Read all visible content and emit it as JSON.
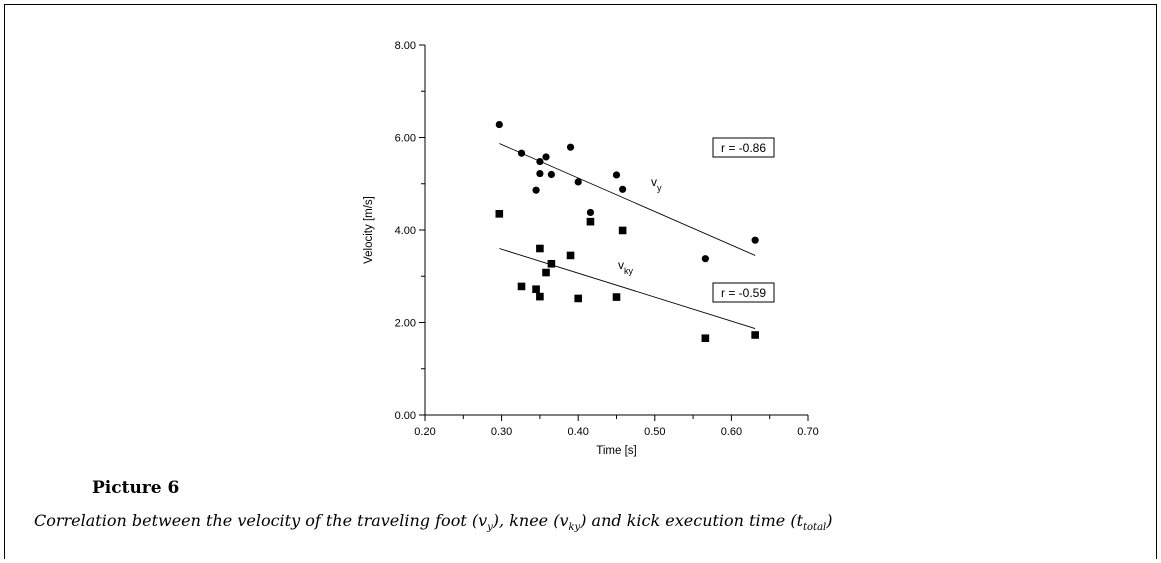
{
  "chart_data": {
    "type": "scatter",
    "xlabel": "Time [s]",
    "ylabel": "Velocity [m/s]",
    "xlim": [
      0.2,
      0.7
    ],
    "ylim": [
      0,
      8
    ],
    "xticks": [
      "0.20",
      "0.30",
      "0.40",
      "0.50",
      "0.60",
      "0.70"
    ],
    "yticks": [
      "0.00",
      "2.00",
      "4.00",
      "6.00",
      "8.00"
    ],
    "grid": false,
    "series": [
      {
        "name": "vy",
        "marker": "circle",
        "points": [
          [
            0.297,
            6.28
          ],
          [
            0.326,
            5.66
          ],
          [
            0.35,
            5.48
          ],
          [
            0.358,
            5.58
          ],
          [
            0.35,
            5.22
          ],
          [
            0.365,
            5.2
          ],
          [
            0.345,
            4.86
          ],
          [
            0.39,
            5.79
          ],
          [
            0.4,
            5.04
          ],
          [
            0.45,
            5.19
          ],
          [
            0.458,
            4.88
          ],
          [
            0.416,
            4.38
          ],
          [
            0.566,
            3.38
          ],
          [
            0.631,
            3.78
          ]
        ],
        "trendline": {
          "x": [
            0.297,
            0.631
          ],
          "y": [
            5.87,
            3.45
          ]
        },
        "r_label": "r = -0.86"
      },
      {
        "name": "vky",
        "marker": "square",
        "points": [
          [
            0.297,
            4.35
          ],
          [
            0.326,
            2.78
          ],
          [
            0.35,
            3.6
          ],
          [
            0.345,
            2.72
          ],
          [
            0.35,
            2.56
          ],
          [
            0.358,
            3.08
          ],
          [
            0.365,
            3.27
          ],
          [
            0.39,
            3.45
          ],
          [
            0.4,
            2.52
          ],
          [
            0.416,
            4.18
          ],
          [
            0.458,
            3.99
          ],
          [
            0.45,
            2.55
          ],
          [
            0.566,
            1.66
          ],
          [
            0.631,
            1.73
          ]
        ],
        "trendline": {
          "x": [
            0.297,
            0.631
          ],
          "y": [
            3.6,
            1.87
          ]
        },
        "r_label": "r = -0.59"
      }
    ]
  },
  "labels": {
    "vy_main": "v",
    "vy_sub": "y",
    "vky_main": "v",
    "vky_sub": "ky"
  },
  "caption": {
    "title": "Picture 6",
    "text_1": "Correlation between the velocity of the traveling foot (v",
    "sub_1": "y",
    "text_2": "), knee (v",
    "sub_2": "ky",
    "text_3": ") and kick execution time (t",
    "sub_3": "total",
    "text_4": ")"
  }
}
